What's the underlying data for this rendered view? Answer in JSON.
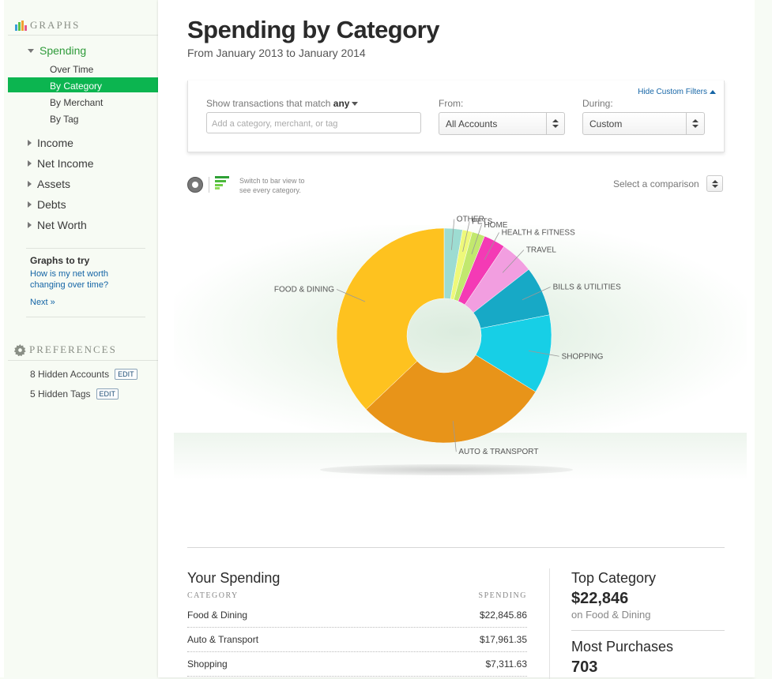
{
  "sidebar": {
    "graphs_heading": "GRAPHS",
    "spending": "Spending",
    "spending_sub": [
      "Over Time",
      "By Category",
      "By Merchant",
      "By Tag"
    ],
    "nav": [
      "Income",
      "Net Income",
      "Assets",
      "Debts",
      "Net Worth"
    ],
    "graphs_to_try": {
      "title": "Graphs to try",
      "link": "How is my net worth changing over time?",
      "next": "Next »"
    },
    "preferences_heading": "PREFERENCES",
    "hidden_accounts": "8 Hidden Accounts",
    "hidden_tags": "5 Hidden Tags",
    "edit_label": "EDIT"
  },
  "header": {
    "title": "Spending by Category",
    "subtitle": "From January 2013 to January 2014"
  },
  "filters": {
    "hide_label": "Hide Custom Filters",
    "match_label": "Show transactions that match",
    "match_value": "any",
    "search_placeholder": "Add a category, merchant, or tag",
    "from_label": "From:",
    "from_value": "All Accounts",
    "during_label": "During:",
    "during_value": "Custom"
  },
  "chart_controls": {
    "switch_text_1": "Switch to bar view to",
    "switch_text_2": "see every category.",
    "comparison": "Select a comparison"
  },
  "chart_data": {
    "type": "pie",
    "categories": [
      "OTHER",
      "PETS",
      "HOME",
      "HEALTH & FITNESS",
      "TRAVEL",
      "BILLS & UTILITIES",
      "SHOPPING",
      "AUTO & TRANSPORT",
      "FOOD & DINING"
    ],
    "values": [
      1700,
      900,
      1200,
      2000,
      3100,
      4600,
      7311.63,
      17961.35,
      22845.86
    ],
    "colors": [
      "#9ddcd2",
      "#eef97a",
      "#c2e86e",
      "#f43ab5",
      "#f29ee0",
      "#17a9c6",
      "#17cfe6",
      "#e89419",
      "#fec21f"
    ],
    "donut": true
  },
  "your_spending": {
    "title": "Your Spending",
    "col_category": "CATEGORY",
    "col_spending": "SPENDING",
    "rows": [
      {
        "category": "Food & Dining",
        "amount": "$22,845.86"
      },
      {
        "category": "Auto & Transport",
        "amount": "$17,961.35"
      },
      {
        "category": "Shopping",
        "amount": "$7,311.63"
      }
    ]
  },
  "stats": {
    "top_category_label": "Top Category",
    "top_category_value": "$22,846",
    "top_category_sub": "on Food & Dining",
    "most_purchases_label": "Most Purchases",
    "most_purchases_value": "703"
  }
}
